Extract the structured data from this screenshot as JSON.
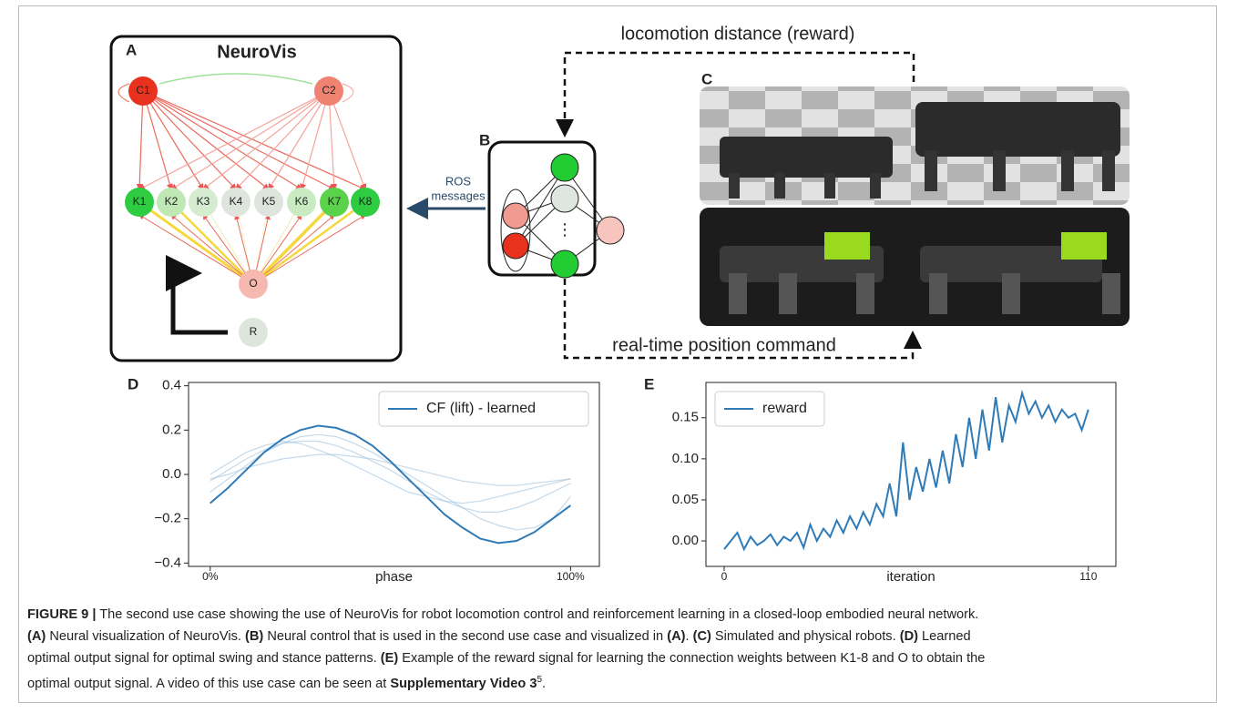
{
  "panels": {
    "A": {
      "label": "A",
      "title": "NeuroVis",
      "nodes": [
        {
          "label": "C1",
          "color": "#e8321e"
        },
        {
          "label": "C2",
          "color": "#f08272"
        },
        {
          "label": "K1",
          "color": "#2ecc40"
        },
        {
          "label": "K2",
          "color": "#bfe8b5"
        },
        {
          "label": "K3",
          "color": "#d5ecd0"
        },
        {
          "label": "K4",
          "color": "#dde5dc"
        },
        {
          "label": "K5",
          "color": "#dde5dc"
        },
        {
          "label": "K6",
          "color": "#c9ebc2"
        },
        {
          "label": "K7",
          "color": "#5ad24a"
        },
        {
          "label": "K8",
          "color": "#2ecc40"
        },
        {
          "label": "O",
          "color": "#f6b9b0"
        },
        {
          "label": "R",
          "color": "#dde5dc"
        }
      ]
    },
    "B": {
      "label": "B",
      "message_lines": [
        "ROS",
        "messages"
      ]
    },
    "C": {
      "label": "C"
    },
    "D": {
      "label": "D"
    },
    "E": {
      "label": "E"
    }
  },
  "loop": {
    "top_label": "locomotion distance (reward)",
    "bottom_label": "real-time position command"
  },
  "chart_data": [
    {
      "type": "line",
      "xlabel": "phase",
      "x": [
        0,
        5,
        10,
        15,
        20,
        25,
        30,
        35,
        40,
        45,
        50,
        55,
        60,
        65,
        70,
        75,
        80,
        85,
        90,
        95,
        100
      ],
      "xlim": [
        -6,
        108
      ],
      "xticks": [
        {
          "value": 0,
          "label": "0%"
        },
        {
          "value": 100,
          "label": "100%"
        }
      ],
      "ylim": [
        -0.415,
        0.415
      ],
      "yticks": [
        {
          "value": -0.4,
          "label": "−0.4"
        },
        {
          "value": -0.2,
          "label": "−0.2"
        },
        {
          "value": 0,
          "label": "0.0"
        },
        0.2,
        0.4
      ],
      "legend": "upper right",
      "series": [
        {
          "color": "#9dbfdc",
          "values": [
            -0.03,
            0.02,
            0.07,
            0.11,
            0.14,
            0.15,
            0.15,
            0.13,
            0.1,
            0.06,
            0.02,
            -0.03,
            -0.08,
            -0.12,
            -0.15,
            -0.17,
            -0.17,
            -0.15,
            -0.12,
            -0.08,
            -0.04
          ]
        },
        {
          "color": "#9dbfdc",
          "values": [
            0.0,
            0.05,
            0.1,
            0.13,
            0.15,
            0.14,
            0.11,
            0.08,
            0.04,
            0.0,
            -0.04,
            -0.08,
            -0.1,
            -0.12,
            -0.13,
            -0.12,
            -0.1,
            -0.08,
            -0.06,
            -0.04,
            -0.02
          ]
        },
        {
          "color": "#9dbfdc",
          "values": [
            -0.08,
            -0.02,
            0.04,
            0.1,
            0.14,
            0.17,
            0.18,
            0.17,
            0.14,
            0.1,
            0.05,
            0.0,
            -0.05,
            -0.1,
            -0.15,
            -0.2,
            -0.23,
            -0.25,
            -0.24,
            -0.2,
            -0.1
          ]
        },
        {
          "color": "#9dbfdc",
          "values": [
            -0.02,
            0.0,
            0.03,
            0.05,
            0.07,
            0.08,
            0.09,
            0.09,
            0.08,
            0.07,
            0.05,
            0.03,
            0.01,
            -0.01,
            -0.03,
            -0.04,
            -0.05,
            -0.05,
            -0.04,
            -0.03,
            -0.02
          ]
        },
        {
          "name": "CF (lift) - learned",
          "color": "#2f7bb8",
          "values": [
            -0.13,
            -0.06,
            0.02,
            0.1,
            0.16,
            0.2,
            0.22,
            0.21,
            0.18,
            0.13,
            0.06,
            -0.02,
            -0.1,
            -0.18,
            -0.24,
            -0.29,
            -0.31,
            -0.3,
            -0.26,
            -0.2,
            -0.14
          ]
        }
      ]
    },
    {
      "type": "line",
      "xlabel": "iteration",
      "x": [
        0,
        2,
        4,
        6,
        8,
        10,
        12,
        14,
        16,
        18,
        20,
        22,
        24,
        26,
        28,
        30,
        32,
        34,
        36,
        38,
        40,
        42,
        44,
        46,
        48,
        50,
        52,
        54,
        56,
        58,
        60,
        62,
        64,
        66,
        68,
        70,
        72,
        74,
        76,
        78,
        80,
        82,
        84,
        86,
        88,
        90,
        92,
        94,
        96,
        98,
        100,
        102,
        104,
        106,
        108,
        110
      ],
      "xlim": [
        -5.5,
        118.3
      ],
      "xticks": [
        0,
        110
      ],
      "ylim": [
        -0.031,
        0.193
      ],
      "yticks": [
        {
          "value": 0,
          "label": "0.00"
        },
        0.05,
        {
          "value": 0.1,
          "label": "0.10"
        },
        0.15
      ],
      "legend": "upper left",
      "series": [
        {
          "name": "reward",
          "color": "#2f7bb8",
          "values": [
            -0.01,
            0.0,
            0.01,
            -0.01,
            0.005,
            -0.005,
            0.0,
            0.008,
            -0.005,
            0.005,
            0.0,
            0.01,
            -0.008,
            0.02,
            0.0,
            0.015,
            0.005,
            0.025,
            0.01,
            0.03,
            0.015,
            0.035,
            0.02,
            0.045,
            0.03,
            0.07,
            0.03,
            0.12,
            0.05,
            0.09,
            0.06,
            0.1,
            0.065,
            0.11,
            0.07,
            0.13,
            0.09,
            0.15,
            0.1,
            0.16,
            0.11,
            0.175,
            0.12,
            0.165,
            0.145,
            0.18,
            0.155,
            0.17,
            0.15,
            0.165,
            0.145,
            0.16,
            0.15,
            0.155,
            0.135,
            0.16
          ]
        }
      ]
    }
  ],
  "caption": {
    "lines": [
      [
        {
          "text": "FIGURE 9 |",
          "bold": true
        },
        {
          "text": " The second use case showing the use of NeuroVis for robot locomotion control and reinforcement learning in a closed-loop embodied neural network."
        }
      ],
      [
        {
          "text": "(A)",
          "bold": true
        },
        {
          "text": " Neural visualization of NeuroVis. "
        },
        {
          "text": "(B)",
          "bold": true
        },
        {
          "text": " Neural control that is used in the second use case and visualized in "
        },
        {
          "text": "(A)",
          "bold": true
        },
        {
          "text": ". "
        },
        {
          "text": "(C)",
          "bold": true
        },
        {
          "text": " Simulated and physical robots. "
        },
        {
          "text": "(D)",
          "bold": true
        },
        {
          "text": " Learned"
        }
      ],
      [
        {
          "text": "optimal output signal for optimal swing and stance patterns. "
        },
        {
          "text": "(E)",
          "bold": true
        },
        {
          "text": " Example of the reward signal for learning the connection weights between K1-8 and O to obtain the"
        }
      ],
      [
        {
          "text": "optimal output signal. A video of this use case can be seen at "
        },
        {
          "text": "Supplementary Video 3",
          "bold": true
        },
        {
          "text": "5",
          "sup": true
        },
        {
          "text": "."
        }
      ]
    ]
  }
}
